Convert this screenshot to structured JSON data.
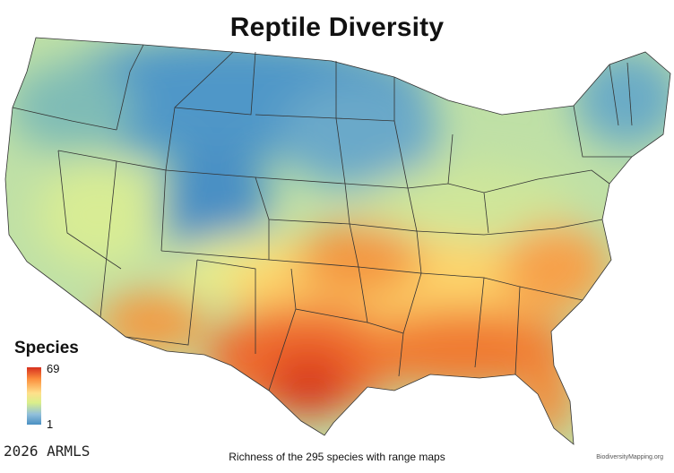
{
  "title": "Reptile Diversity",
  "legend": {
    "title": "Species",
    "max": "69",
    "min": "1"
  },
  "caption": "Richness of the 295 species with range maps",
  "copyright": "2026 ARMLS",
  "credit": "BiodiversityMapping.org",
  "colors": {
    "high": "#d7301f",
    "mid": "#fee08b",
    "low": "#4a90c2",
    "border": "#333333"
  }
}
